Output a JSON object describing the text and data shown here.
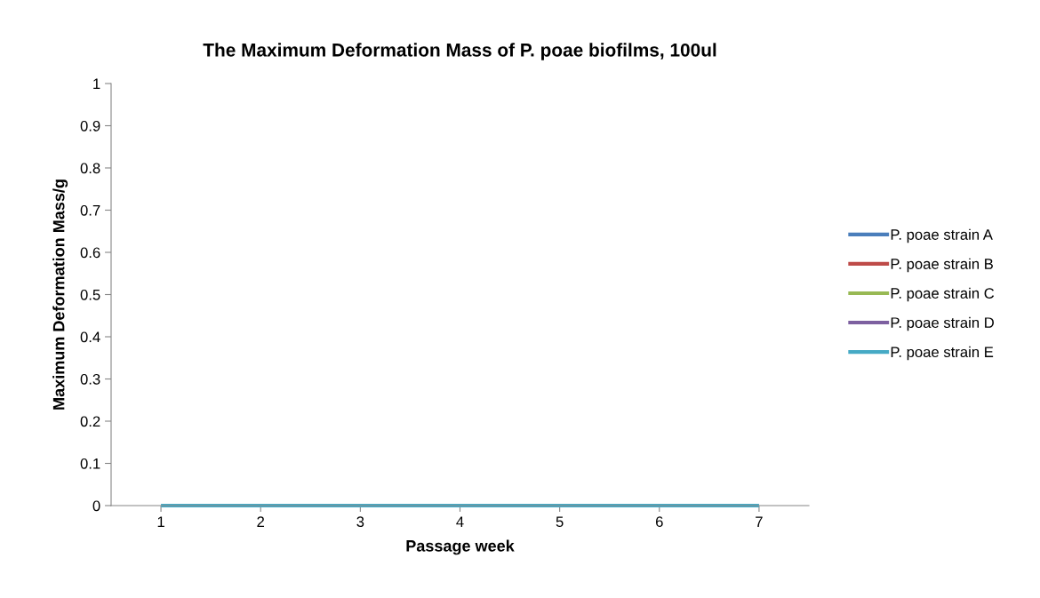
{
  "chart_data": {
    "type": "line",
    "title": "The Maximum Deformation Mass of P. poae biofilms, 100ul",
    "xlabel": "Passage week",
    "ylabel": "Maximum Deformation Mass/g",
    "categories": [
      "1",
      "2",
      "3",
      "4",
      "5",
      "6",
      "7"
    ],
    "series": [
      {
        "name": "P. poae strain A",
        "color": "#4a7ebb",
        "values": [
          null,
          null,
          null,
          null,
          null,
          null,
          null
        ]
      },
      {
        "name": "P. poae strain B",
        "color": "#be4b48",
        "values": [
          null,
          null,
          null,
          null,
          null,
          null,
          null
        ]
      },
      {
        "name": "P. poae strain C",
        "color": "#98b954",
        "values": [
          null,
          null,
          null,
          null,
          null,
          null,
          null
        ]
      },
      {
        "name": "P. poae strain D",
        "color": "#7d60a0",
        "values": [
          null,
          null,
          null,
          null,
          null,
          null,
          null
        ]
      },
      {
        "name": "P. poae strain E",
        "color": "#46aac5",
        "values": [
          0,
          0,
          0,
          0,
          0,
          0,
          0
        ]
      }
    ],
    "ylim": [
      0,
      1
    ],
    "yticks": [
      0,
      0.1,
      0.2,
      0.3,
      0.4,
      0.5,
      0.6,
      0.7,
      0.8,
      0.9,
      1
    ],
    "grid": false,
    "legend": "right",
    "marker": "none",
    "line_style": "solid"
  }
}
